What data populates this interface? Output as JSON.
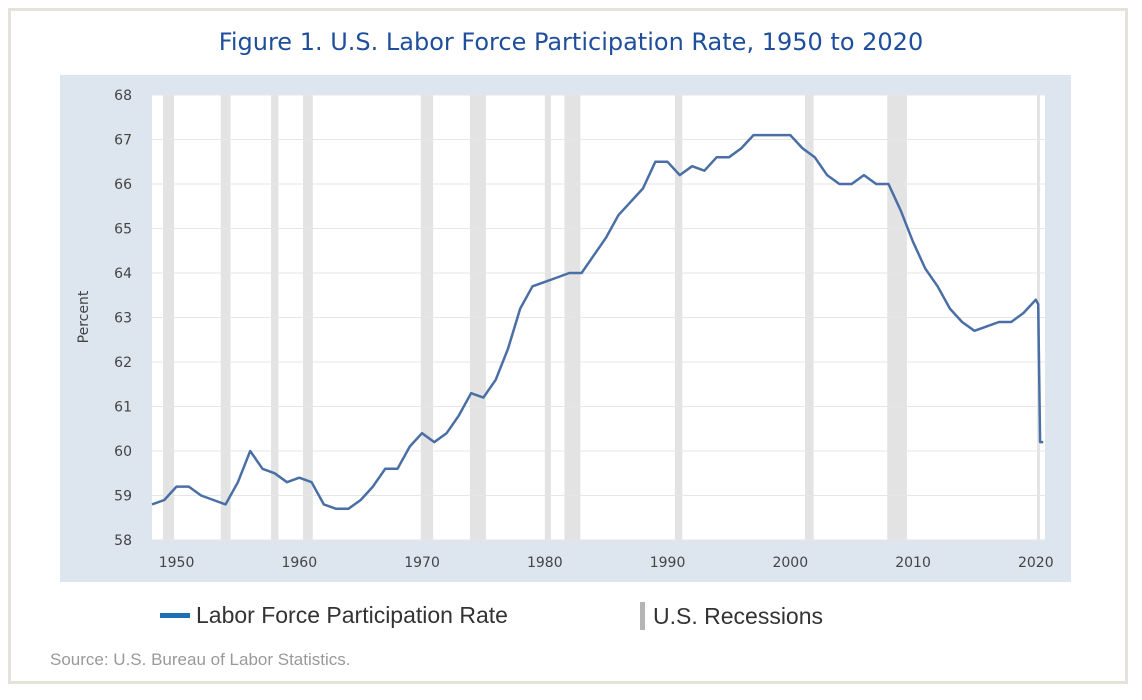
{
  "title": "Figure 1. U.S. Labor Force Participation Rate, 1950 to 2020",
  "source": "Source: U.S. Bureau of Labor Statistics.",
  "chart_data": {
    "type": "line",
    "title": "Figure 1. U.S. Labor Force Participation Rate, 1950 to 2020",
    "ylabel": "Percent",
    "xlabel": "",
    "xlim": [
      1948,
      2020.75
    ],
    "ylim": [
      58,
      68
    ],
    "yticks": [
      "58",
      "59",
      "60",
      "61",
      "62",
      "63",
      "64",
      "65",
      "66",
      "67",
      "68"
    ],
    "xticks": [
      "1950",
      "1960",
      "1970",
      "1980",
      "1990",
      "2000",
      "2010",
      "2020"
    ],
    "grid": true,
    "legend_position": "bottom",
    "line_color": "#4a6fa5",
    "recession_color": "#e3e3e3",
    "series": [
      {
        "name": "Labor Force Participation Rate",
        "x": [
          1948,
          1949,
          1950,
          1951,
          1952,
          1953,
          1954,
          1955,
          1956,
          1957,
          1958,
          1959,
          1960,
          1961,
          1962,
          1963,
          1964,
          1965,
          1966,
          1967,
          1968,
          1969,
          1970,
          1971,
          1972,
          1973,
          1974,
          1975,
          1976,
          1977,
          1978,
          1979,
          1980,
          1981,
          1982,
          1983,
          1984,
          1985,
          1986,
          1987,
          1988,
          1989,
          1990,
          1991,
          1992,
          1993,
          1994,
          1995,
          1996,
          1997,
          1998,
          1999,
          2000,
          2001,
          2002,
          2003,
          2004,
          2005,
          2006,
          2007,
          2008,
          2009,
          2010,
          2011,
          2012,
          2013,
          2014,
          2015,
          2016,
          2017,
          2018,
          2019,
          2020.0,
          2020.2,
          2020.35,
          2020.6
        ],
        "values": [
          58.8,
          58.9,
          59.2,
          59.2,
          59.0,
          58.9,
          58.8,
          59.3,
          60.0,
          59.6,
          59.5,
          59.3,
          59.4,
          59.3,
          58.8,
          58.7,
          58.7,
          58.9,
          59.2,
          59.6,
          59.6,
          60.1,
          60.4,
          60.2,
          60.4,
          60.8,
          61.3,
          61.2,
          61.6,
          62.3,
          63.2,
          63.7,
          63.8,
          63.9,
          64.0,
          64.0,
          64.4,
          64.8,
          65.3,
          65.6,
          65.9,
          66.5,
          66.5,
          66.2,
          66.4,
          66.3,
          66.6,
          66.6,
          66.8,
          67.1,
          67.1,
          67.1,
          67.1,
          66.8,
          66.6,
          66.2,
          66.0,
          66.0,
          66.2,
          66.0,
          66.0,
          65.4,
          64.7,
          64.1,
          63.7,
          63.2,
          62.9,
          62.7,
          62.8,
          62.9,
          62.9,
          63.1,
          63.4,
          63.3,
          60.2,
          60.2
        ]
      }
    ],
    "recessions_label": "U.S. Recessions",
    "recessions": [
      [
        1948.9,
        1949.8
      ],
      [
        1953.6,
        1954.4
      ],
      [
        1957.7,
        1958.3
      ],
      [
        1960.3,
        1961.1
      ],
      [
        1969.9,
        1970.9
      ],
      [
        1973.9,
        1975.2
      ],
      [
        1980.0,
        1980.5
      ],
      [
        1981.6,
        1982.9
      ],
      [
        1990.6,
        1991.2
      ],
      [
        2001.2,
        2001.9
      ],
      [
        2007.9,
        2009.5
      ],
      [
        2020.1,
        2020.3
      ]
    ]
  }
}
